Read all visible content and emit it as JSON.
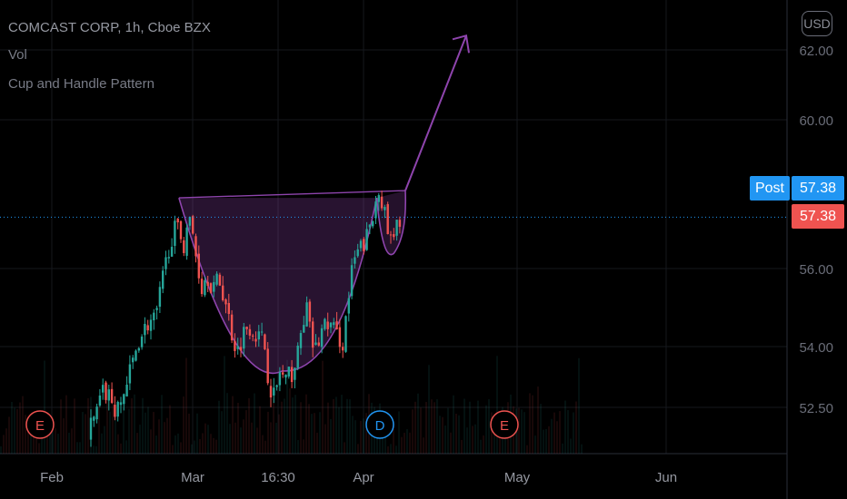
{
  "legend": {
    "symbol_line": "COMCAST CORP, 1h, Cboe BZX",
    "volume": "Vol",
    "indicator": "Cup and Handle Pattern"
  },
  "currency": "USD",
  "post_label": "Post",
  "post_price": "57.38",
  "last_price": "57.38",
  "colors": {
    "background": "#000000",
    "up_candle": "#26a69a",
    "down_candle": "#ef5350",
    "pattern": "#8e44ad",
    "post_tag": "#2196f3",
    "last_price": "#ef5350",
    "event_earnings": "#ef5350",
    "event_dividend": "#2196f3"
  },
  "chart_data": {
    "type": "candlestick",
    "symbol": "COMCAST CORP",
    "interval": "1h",
    "exchange": "Cboe BZX",
    "y_ticks": [
      "52.50",
      "54.00",
      "56.00",
      "60.00",
      "62.00"
    ],
    "x_ticks": [
      "Feb",
      "Mar",
      "16:30",
      "Apr",
      "May",
      "Jun"
    ],
    "ylim": [
      51.4,
      62.6
    ],
    "grid": true,
    "last_price": 57.38,
    "post_price": 57.38,
    "price_path": [
      {
        "d": 0.0,
        "p": 51.7
      },
      {
        "d": 0.04,
        "p": 51.8
      },
      {
        "d": 0.06,
        "p": 52.3
      },
      {
        "d": 0.1,
        "p": 52.9
      },
      {
        "d": 0.13,
        "p": 53.3
      },
      {
        "d": 0.17,
        "p": 53.0
      },
      {
        "d": 0.2,
        "p": 52.5
      },
      {
        "d": 0.23,
        "p": 52.1
      },
      {
        "d": 0.25,
        "p": 52.4
      },
      {
        "d": 0.28,
        "p": 52.8
      },
      {
        "d": 0.32,
        "p": 52.9
      },
      {
        "d": 0.35,
        "p": 52.6
      },
      {
        "d": 0.38,
        "p": 52.3
      },
      {
        "d": 0.41,
        "p": 52.7
      },
      {
        "d": 0.46,
        "p": 53.3
      },
      {
        "d": 0.52,
        "p": 54.2
      },
      {
        "d": 0.58,
        "p": 54.6
      },
      {
        "d": 0.63,
        "p": 54.7
      },
      {
        "d": 0.67,
        "p": 55.6
      },
      {
        "d": 0.72,
        "p": 56.7
      },
      {
        "d": 0.76,
        "p": 57.1
      },
      {
        "d": 0.79,
        "p": 56.9
      },
      {
        "d": 0.81,
        "p": 56.6
      },
      {
        "d": 0.84,
        "p": 57.4
      },
      {
        "d": 0.87,
        "p": 56.9
      },
      {
        "d": 0.9,
        "p": 56.1
      },
      {
        "d": 0.93,
        "p": 55.5
      },
      {
        "d": 0.96,
        "p": 55.9
      },
      {
        "d": 1.0,
        "p": 55.5
      },
      {
        "d": 1.04,
        "p": 55.7
      },
      {
        "d": 1.07,
        "p": 55.3
      },
      {
        "d": 1.1,
        "p": 54.8
      },
      {
        "d": 1.13,
        "p": 54.2
      },
      {
        "d": 1.16,
        "p": 53.9
      },
      {
        "d": 1.19,
        "p": 54.3
      },
      {
        "d": 1.23,
        "p": 54.6
      },
      {
        "d": 1.27,
        "p": 54.4
      },
      {
        "d": 1.3,
        "p": 54.2
      },
      {
        "d": 1.33,
        "p": 54.2
      },
      {
        "d": 1.36,
        "p": 53.2
      },
      {
        "d": 1.4,
        "p": 52.7
      },
      {
        "d": 1.43,
        "p": 53.4
      },
      {
        "d": 1.47,
        "p": 53.1
      },
      {
        "d": 1.5,
        "p": 53.3
      },
      {
        "d": 1.54,
        "p": 53.6
      },
      {
        "d": 1.57,
        "p": 54.3
      },
      {
        "d": 1.6,
        "p": 55.1
      },
      {
        "d": 1.64,
        "p": 54.1
      },
      {
        "d": 1.67,
        "p": 53.9
      },
      {
        "d": 1.7,
        "p": 54.4
      },
      {
        "d": 1.74,
        "p": 54.6
      },
      {
        "d": 1.77,
        "p": 54.5
      },
      {
        "d": 1.8,
        "p": 54.3
      },
      {
        "d": 1.84,
        "p": 54.1
      },
      {
        "d": 1.87,
        "p": 55.0
      },
      {
        "d": 1.9,
        "p": 55.9
      },
      {
        "d": 1.93,
        "p": 56.4
      },
      {
        "d": 1.97,
        "p": 56.6
      },
      {
        "d": 2.0,
        "p": 56.9
      },
      {
        "d": 2.04,
        "p": 57.4
      },
      {
        "d": 2.07,
        "p": 58.3
      },
      {
        "d": 2.1,
        "p": 57.7
      },
      {
        "d": 2.13,
        "p": 57.0
      },
      {
        "d": 2.16,
        "p": 56.6
      },
      {
        "d": 2.19,
        "p": 57.1
      },
      {
        "d": 2.21,
        "p": 57.38
      }
    ],
    "notes": "d = months after start of February"
  },
  "events": [
    {
      "label": "E",
      "kind": "earnings",
      "d": -0.45
    },
    {
      "label": "D",
      "kind": "dividend",
      "d": 1.13
    },
    {
      "label": "E",
      "kind": "earnings",
      "d": 1.97
    }
  ],
  "pattern": {
    "name": "Cup and Handle Pattern",
    "rim_price": 57.9,
    "cup_left_d": 0.78,
    "cup_bottom_d": 1.45,
    "cup_bottom_price": 53.4,
    "cup_right_d": 2.06,
    "handle_low_price": 56.6,
    "target_price": 62.2
  }
}
